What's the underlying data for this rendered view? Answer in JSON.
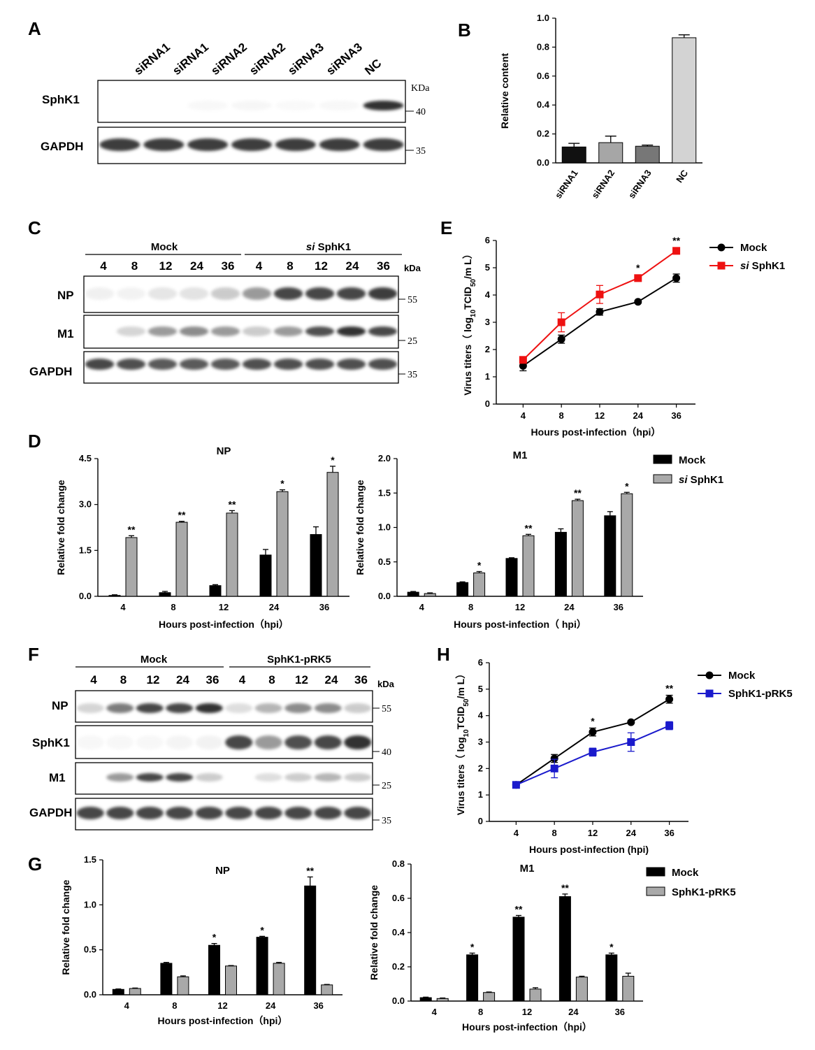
{
  "panel_letters": {
    "A": "A",
    "B": "B",
    "C": "C",
    "D": "D",
    "E": "E",
    "F": "F",
    "G": "G",
    "H": "H"
  },
  "colors": {
    "black": "#000000",
    "gray": "#a9a9a9",
    "siRNA1": "#111111",
    "siRNA2": "#a6a6a6",
    "siRNA3": "#777777",
    "NC": "#d3d3d3",
    "red": "#ee1111",
    "blue": "#1a1acc"
  },
  "blots": {
    "A": {
      "lanes": [
        "siRNA1",
        "siRNA1",
        "siRNA2",
        "siRNA2",
        "siRNA3",
        "siRNA3",
        "NC"
      ],
      "rows": [
        {
          "name": "SphK1",
          "intensity": [
            0,
            0,
            0.04,
            0.06,
            0.03,
            0.05,
            0.95
          ],
          "markers": [
            "KDa",
            "40"
          ]
        },
        {
          "name": "GAPDH",
          "intensity": [
            0.9,
            0.9,
            0.9,
            0.9,
            0.9,
            0.9,
            0.9
          ],
          "markers": [
            "35"
          ]
        }
      ]
    },
    "C": {
      "groups": [
        {
          "label": "Mock"
        },
        {
          "label_italic": "si",
          "label_rest": " SphK1"
        }
      ],
      "lanes": [
        "4",
        "8",
        "12",
        "24",
        "36",
        "4",
        "8",
        "12",
        "24",
        "36"
      ],
      "unit": "kDa",
      "rows": [
        {
          "name": "NP",
          "intensity": [
            0.12,
            0.1,
            0.2,
            0.22,
            0.35,
            0.55,
            0.85,
            0.85,
            0.85,
            0.9
          ],
          "markers": [
            "55"
          ]
        },
        {
          "name": "M1",
          "intensity": [
            0,
            0.3,
            0.55,
            0.6,
            0.55,
            0.35,
            0.55,
            0.8,
            0.95,
            0.85
          ],
          "markers": [
            "25"
          ]
        },
        {
          "name": "GAPDH",
          "intensity": [
            0.85,
            0.8,
            0.75,
            0.75,
            0.75,
            0.8,
            0.8,
            0.8,
            0.8,
            0.8
          ],
          "markers": [
            "35"
          ]
        }
      ]
    },
    "F": {
      "groups": [
        {
          "label": "Mock"
        },
        {
          "label": "SphK1-pRK5"
        }
      ],
      "lanes": [
        "4",
        "8",
        "12",
        "24",
        "36",
        "4",
        "8",
        "12",
        "24",
        "36"
      ],
      "unit": "kDa",
      "rows": [
        {
          "name": "NP",
          "intensity": [
            0.3,
            0.65,
            0.85,
            0.85,
            0.95,
            0.25,
            0.45,
            0.6,
            0.6,
            0.35
          ],
          "markers": [
            "55"
          ]
        },
        {
          "name": "SphK1",
          "intensity": [
            0.05,
            0.05,
            0.05,
            0.08,
            0.1,
            0.85,
            0.55,
            0.8,
            0.85,
            0.95
          ],
          "markers": [
            "40"
          ]
        },
        {
          "name": "M1",
          "intensity": [
            0,
            0.55,
            0.85,
            0.85,
            0.35,
            0,
            0.25,
            0.35,
            0.45,
            0.35
          ],
          "markers": [
            "25"
          ]
        },
        {
          "name": "GAPDH",
          "intensity": [
            0.85,
            0.85,
            0.85,
            0.85,
            0.85,
            0.85,
            0.85,
            0.85,
            0.85,
            0.85
          ],
          "markers": [
            "35"
          ]
        }
      ]
    }
  },
  "chart_data": [
    {
      "id": "B",
      "type": "bar",
      "categories": [
        "siRNA1",
        "siRNA2",
        "siRNA3",
        "NC"
      ],
      "values": [
        0.11,
        0.14,
        0.115,
        0.865
      ],
      "errors": [
        0.025,
        0.045,
        0.008,
        0.02
      ],
      "ylabel": "Relative content",
      "ylim": [
        0,
        1.0
      ],
      "yticks": [
        "0.0",
        "0.2",
        "0.4",
        "0.6",
        "0.8",
        "1.0"
      ]
    },
    {
      "id": "D-NP",
      "type": "bar",
      "title": "NP",
      "categories": [
        "4",
        "8",
        "12",
        "24",
        "36"
      ],
      "series": [
        {
          "name": "Mock",
          "values": [
            0.03,
            0.12,
            0.35,
            1.35,
            2.02
          ],
          "errors": [
            0.02,
            0.04,
            0.03,
            0.18,
            0.25
          ]
        },
        {
          "name": "si SphK1",
          "values": [
            1.92,
            2.42,
            2.72,
            3.42,
            4.05
          ],
          "errors": [
            0.06,
            0.03,
            0.08,
            0.06,
            0.2
          ]
        }
      ],
      "significance": [
        "**",
        "**",
        "**",
        "*",
        "*"
      ],
      "xlabel": "Hours post-infection（hpi）",
      "ylabel": "Relative fold change",
      "ylim": [
        0,
        4.5
      ],
      "yticks": [
        "0.0",
        "1.5",
        "3.0",
        "4.5"
      ]
    },
    {
      "id": "D-M1",
      "type": "bar",
      "title": "M1",
      "categories": [
        "4",
        "8",
        "12",
        "24",
        "36"
      ],
      "series": [
        {
          "name": "Mock",
          "values": [
            0.06,
            0.2,
            0.55,
            0.93,
            1.17
          ],
          "errors": [
            0.01,
            0.01,
            0.01,
            0.05,
            0.06
          ]
        },
        {
          "name": "si SphK1",
          "values": [
            0.04,
            0.34,
            0.88,
            1.39,
            1.49
          ],
          "errors": [
            0.01,
            0.02,
            0.02,
            0.02,
            0.02
          ]
        }
      ],
      "significance": [
        "",
        "*",
        "**",
        "**",
        "*"
      ],
      "xlabel": "Hours post-infection（ hpi）",
      "ylabel": "Relative fold change",
      "ylim": [
        0,
        2.0
      ],
      "yticks": [
        "0.0",
        "0.5",
        "1.0",
        "1.5",
        "2.0"
      ],
      "legend": [
        {
          "name": "Mock"
        },
        {
          "name_italic": "si",
          "name_rest": " SphK1"
        }
      ]
    },
    {
      "id": "E",
      "type": "line",
      "x": [
        "4",
        "8",
        "12",
        "24",
        "36"
      ],
      "series": [
        {
          "name": "Mock",
          "values": [
            1.4,
            2.38,
            3.38,
            3.75,
            4.62
          ],
          "errors": [
            0.18,
            0.15,
            0.12,
            0.05,
            0.15
          ]
        },
        {
          "name": "si SphK1",
          "values": [
            1.62,
            3.0,
            4.02,
            4.62,
            5.62
          ],
          "errors": [
            0.1,
            0.35,
            0.33,
            0.12,
            0.12
          ]
        }
      ],
      "significance": [
        "",
        "",
        "",
        "*",
        "**"
      ],
      "xlabel": "Hours post-infection（hpi）",
      "ylabel_prefix": "Virus titers（ log",
      "ylabel_sub1": "10",
      "ylabel_mid": "TCID",
      "ylabel_sub2": "50",
      "ylabel_suffix": "/m L）",
      "ylim": [
        0,
        6
      ],
      "yticks": [
        "0",
        "1",
        "2",
        "3",
        "4",
        "5",
        "6"
      ],
      "legend": [
        {
          "name": "Mock"
        },
        {
          "name_italic": "si",
          "name_rest": " SphK1"
        }
      ]
    },
    {
      "id": "G-NP",
      "type": "bar",
      "title": "NP",
      "categories": [
        "4",
        "8",
        "12",
        "24",
        "36"
      ],
      "series": [
        {
          "name": "Mock",
          "values": [
            0.06,
            0.35,
            0.55,
            0.64,
            1.21
          ],
          "errors": [
            0.005,
            0.01,
            0.02,
            0.01,
            0.1
          ]
        },
        {
          "name": "SphK1-pRK5",
          "values": [
            0.07,
            0.2,
            0.32,
            0.35,
            0.11
          ],
          "errors": [
            0.005,
            0.01,
            0.005,
            0.01,
            0.005
          ]
        }
      ],
      "significance": [
        "",
        "",
        "*",
        "*",
        "**"
      ],
      "xlabel": "Hours post-infection（hpi）",
      "ylabel": "Relative fold change",
      "ylim": [
        0,
        1.5
      ],
      "yticks": [
        "0.0",
        "0.5",
        "1.0",
        "1.5"
      ]
    },
    {
      "id": "G-M1",
      "type": "bar",
      "title": "M1",
      "categories": [
        "4",
        "8",
        "12",
        "24",
        "36"
      ],
      "series": [
        {
          "name": "Mock",
          "values": [
            0.02,
            0.27,
            0.49,
            0.61,
            0.27
          ],
          "errors": [
            0.003,
            0.01,
            0.01,
            0.015,
            0.01
          ]
        },
        {
          "name": "SphK1-pRK5",
          "values": [
            0.015,
            0.05,
            0.07,
            0.14,
            0.145
          ],
          "errors": [
            0.003,
            0.003,
            0.008,
            0.005,
            0.018
          ]
        }
      ],
      "significance": [
        "",
        "*",
        "**",
        "**",
        "*"
      ],
      "xlabel": "Hours post-infection（hpi）",
      "ylabel": "Relative fold change",
      "ylim": [
        0,
        0.8
      ],
      "yticks": [
        "0.0",
        "0.2",
        "0.4",
        "0.6",
        "0.8"
      ],
      "legend": [
        {
          "name": "Mock"
        },
        {
          "name": "SphK1-pRK5"
        }
      ]
    },
    {
      "id": "H",
      "type": "line",
      "x": [
        "4",
        "8",
        "12",
        "24",
        "36"
      ],
      "series": [
        {
          "name": "Mock",
          "values": [
            1.38,
            2.38,
            3.38,
            3.75,
            4.62
          ],
          "errors": [
            0.1,
            0.15,
            0.15,
            0.05,
            0.15
          ]
        },
        {
          "name": "SphK1-pRK5",
          "values": [
            1.38,
            2.0,
            2.62,
            3.0,
            3.62
          ],
          "errors": [
            0.1,
            0.35,
            0.15,
            0.35,
            0.15
          ]
        }
      ],
      "significance": [
        "",
        "",
        "*",
        "",
        "**"
      ],
      "xlabel": "Hours post-infection (hpi)",
      "ylabel_prefix": "Virus titers（ log",
      "ylabel_sub1": "10",
      "ylabel_mid": "TCID",
      "ylabel_sub2": "50",
      "ylabel_suffix": "/m L）",
      "ylim": [
        0,
        6
      ],
      "yticks": [
        "0",
        "1",
        "2",
        "3",
        "4",
        "5",
        "6"
      ],
      "legend": [
        {
          "name": "Mock"
        },
        {
          "name": "SphK1-pRK5"
        }
      ]
    }
  ]
}
